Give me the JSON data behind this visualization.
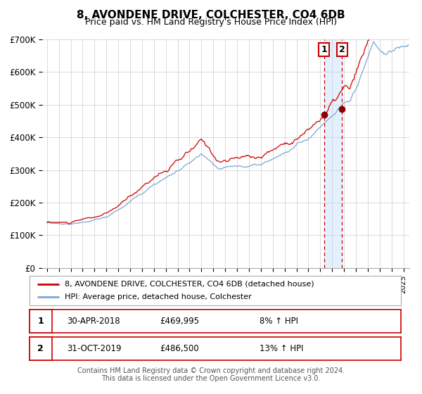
{
  "title": "8, AVONDENE DRIVE, COLCHESTER, CO4 6DB",
  "subtitle": "Price paid vs. HM Land Registry's House Price Index (HPI)",
  "ylim": [
    0,
    700000
  ],
  "yticks": [
    0,
    100000,
    200000,
    300000,
    400000,
    500000,
    600000,
    700000
  ],
  "ytick_labels": [
    "£0",
    "£100K",
    "£200K",
    "£300K",
    "£400K",
    "£500K",
    "£600K",
    "£700K"
  ],
  "xlim_start": 1994.6,
  "xlim_end": 2025.5,
  "red_line_color": "#cc0000",
  "blue_line_color": "#7ba7d0",
  "marker1_date": 2018.33,
  "marker2_date": 2019.83,
  "marker1_value": 469995,
  "marker2_value": 486500,
  "vline1_x": 2018.33,
  "vline2_x": 2019.83,
  "shade_start": 2018.33,
  "shade_end": 2019.83,
  "legend_label1": "8, AVONDENE DRIVE, COLCHESTER, CO4 6DB (detached house)",
  "legend_label2": "HPI: Average price, detached house, Colchester",
  "table_row1": [
    "1",
    "30-APR-2018",
    "£469,995",
    "8% ↑ HPI"
  ],
  "table_row2": [
    "2",
    "31-OCT-2019",
    "£486,500",
    "13% ↑ HPI"
  ],
  "footer1": "Contains HM Land Registry data © Crown copyright and database right 2024.",
  "footer2": "This data is licensed under the Open Government Licence v3.0.",
  "background_color": "#ffffff",
  "grid_color": "#cccccc",
  "title_fontsize": 11,
  "subtitle_fontsize": 9
}
